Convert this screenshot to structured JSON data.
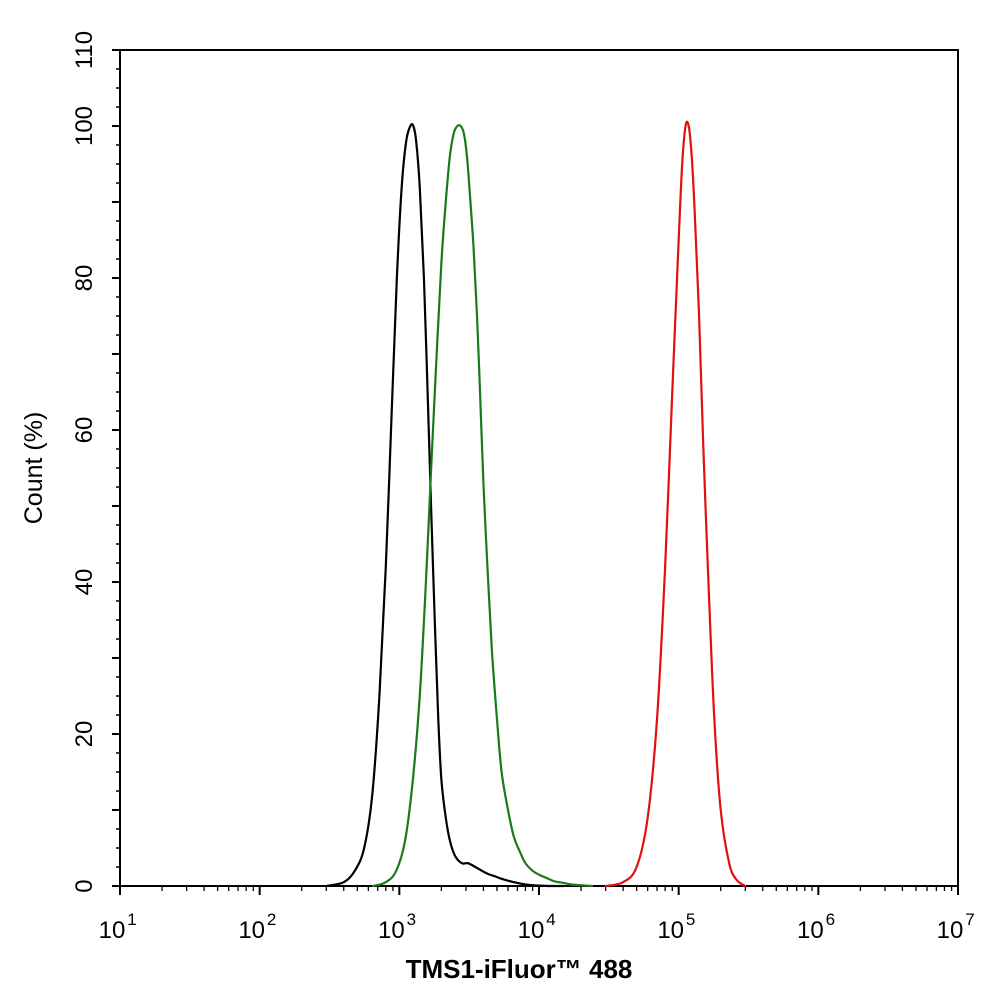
{
  "chart_data": {
    "type": "line",
    "title": "",
    "xlabel": "TMS1-iFluor™ 488",
    "ylabel": "Count  (%)",
    "xscale": "log",
    "xlim": [
      10,
      10000000
    ],
    "ylim": [
      0,
      110
    ],
    "yticks": [
      0,
      20,
      40,
      60,
      80,
      100,
      110
    ],
    "xtick_bases": [
      "10",
      "10",
      "10",
      "10",
      "10",
      "10",
      "10"
    ],
    "xtick_exponents": [
      "1",
      "2",
      "3",
      "4",
      "5",
      "6",
      "7"
    ],
    "xtick_values": [
      10,
      100,
      1000,
      10000,
      100000,
      1000000,
      10000000
    ],
    "grid": false,
    "legend": "none",
    "series": [
      {
        "color": "#000000",
        "x": [
          300,
          400,
          480,
          560,
          640,
          720,
          800,
          880,
          960,
          1040,
          1120,
          1200,
          1260,
          1320,
          1400,
          1500,
          1600,
          1700,
          1800,
          1900,
          2000,
          2150,
          2300,
          2500,
          2800,
          3100,
          3500,
          3900,
          4300,
          4800,
          5300,
          6000,
          7000,
          8000,
          9000,
          10000,
          12000,
          15000
        ],
        "y": [
          0,
          0.5,
          2,
          5,
          12,
          25,
          42,
          62,
          80,
          92,
          98,
          100,
          100,
          98,
          92,
          80,
          64,
          48,
          34,
          22,
          14,
          9,
          6,
          4,
          3,
          3,
          2.5,
          2,
          1.6,
          1.3,
          1,
          0.7,
          0.4,
          0.2,
          0.1,
          0.05,
          0,
          0
        ]
      },
      {
        "color": "#1a7a1a",
        "x": [
          650,
          800,
          950,
          1100,
          1250,
          1400,
          1550,
          1700,
          1850,
          2000,
          2150,
          2300,
          2450,
          2600,
          2750,
          2900,
          3050,
          3200,
          3400,
          3600,
          3800,
          4000,
          4300,
          4600,
          5000,
          5400,
          6000,
          6600,
          7300,
          8000,
          9000,
          10000,
          11500,
          13000,
          15000,
          17000,
          20000,
          24000
        ],
        "y": [
          0,
          0.5,
          2,
          6,
          14,
          25,
          40,
          56,
          70,
          82,
          90,
          96,
          99,
          100,
          100,
          99,
          96,
          91,
          84,
          75,
          64,
          53,
          41,
          31,
          22,
          15,
          10,
          6.5,
          4.5,
          3,
          2,
          1.5,
          1,
          0.6,
          0.4,
          0.2,
          0.1,
          0
        ]
      },
      {
        "color": "#e01010",
        "x": [
          30000,
          40000,
          50000,
          60000,
          70000,
          80000,
          90000,
          100000,
          106000,
          112000,
          118000,
          124000,
          130000,
          140000,
          150000,
          165000,
          180000,
          200000,
          230000,
          260000,
          300000
        ],
        "y": [
          0,
          0.5,
          2.5,
          9,
          22,
          42,
          65,
          85,
          95,
          100,
          100,
          96,
          89,
          75,
          58,
          38,
          22,
          10,
          3,
          0.8,
          0
        ]
      }
    ]
  }
}
